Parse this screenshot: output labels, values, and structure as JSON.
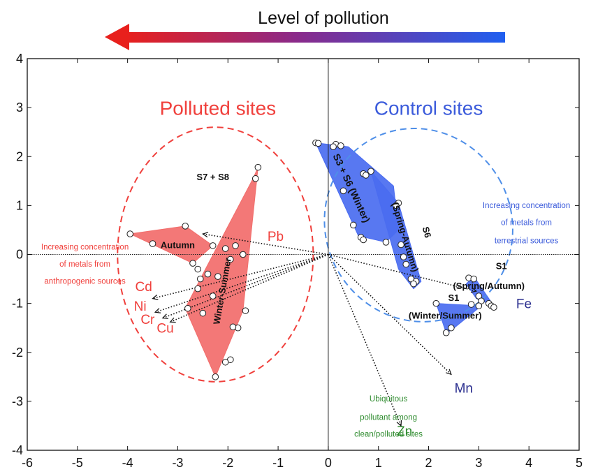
{
  "chart_data": {
    "type": "scatter",
    "title": "Level of pollution",
    "xlim": [
      -6,
      5
    ],
    "ylim": [
      -4,
      4
    ],
    "x_ticks": [
      -6,
      -5,
      -4,
      -3,
      -2,
      -1,
      0,
      1,
      2,
      3,
      4,
      5
    ],
    "y_ticks": [
      -4,
      -3,
      -2,
      -1,
      0,
      1,
      2,
      3,
      4
    ],
    "grid": false,
    "colors": {
      "polluted": "#f0403c",
      "polluted_fill": "#f26d6b",
      "control": "#3b5bdb",
      "control_fill": "#4a6cf0",
      "control_ellipse": "#4f8fe8",
      "green_text": "#2e8b2e",
      "navy_text": "#2b2f8f",
      "arrow_start": "#e8201c",
      "arrow_end": "#1f5ff0"
    },
    "group_labels": [
      {
        "name": "polluted",
        "text": "Polluted sites",
        "x": -2.2,
        "y": 2.85
      },
      {
        "name": "control",
        "text": "Control sites",
        "x": 2.0,
        "y": 2.85
      }
    ],
    "ellipses": [
      {
        "name": "polluted",
        "cx": -2.25,
        "cy": 0.0,
        "rx": 1.95,
        "ry": 2.6,
        "angle": 0
      },
      {
        "name": "control",
        "cx": 1.8,
        "cy": 0.6,
        "rx": 1.85,
        "ry": 2.0,
        "angle": -30
      }
    ],
    "hulls": [
      {
        "name": "polluted-autumn",
        "group": "polluted",
        "points": [
          [
            -3.95,
            0.42
          ],
          [
            -2.85,
            0.58
          ],
          [
            -2.3,
            0.18
          ],
          [
            -2.7,
            -0.18
          ]
        ]
      },
      {
        "name": "polluted-winter-summer",
        "group": "polluted",
        "points": [
          [
            -2.85,
            -1.1
          ],
          [
            -2.5,
            -0.4
          ],
          [
            -1.5,
            1.55
          ],
          [
            -1.4,
            1.78
          ],
          [
            -1.7,
            -1.15
          ],
          [
            -2.25,
            -2.5
          ]
        ]
      },
      {
        "name": "control-s3-s6-winter",
        "group": "control",
        "points": [
          [
            -0.25,
            2.28
          ],
          [
            0.4,
            2.2
          ],
          [
            1.3,
            1.4
          ],
          [
            1.4,
            0.5
          ],
          [
            1.15,
            0.25
          ],
          [
            0.6,
            0.38
          ]
        ]
      },
      {
        "name": "control-s6-spring-autumn",
        "group": "control",
        "points": [
          [
            0.85,
            1.7
          ],
          [
            1.4,
            1.05
          ],
          [
            1.85,
            -0.55
          ],
          [
            1.7,
            -0.7
          ],
          [
            1.4,
            -0.3
          ]
        ]
      },
      {
        "name": "control-s1-spring-autumn",
        "group": "control",
        "points": [
          [
            2.75,
            -0.6
          ],
          [
            2.9,
            -0.45
          ],
          [
            3.3,
            -1.05
          ],
          [
            2.95,
            -0.9
          ]
        ]
      },
      {
        "name": "control-s1-winter-summer",
        "group": "control",
        "points": [
          [
            2.15,
            -1.0
          ],
          [
            3.05,
            -1.05
          ],
          [
            2.45,
            -1.55
          ],
          [
            2.35,
            -1.6
          ]
        ]
      }
    ],
    "points": [
      [
        -3.95,
        0.42
      ],
      [
        -3.5,
        0.22
      ],
      [
        -2.85,
        0.58
      ],
      [
        -2.3,
        0.18
      ],
      [
        -2.7,
        -0.18
      ],
      [
        -2.6,
        -0.3
      ],
      [
        -2.55,
        -0.5
      ],
      [
        -2.6,
        -0.7
      ],
      [
        -2.4,
        -0.4
      ],
      [
        -2.3,
        -0.85
      ],
      [
        -2.5,
        -1.2
      ],
      [
        -2.8,
        -1.1
      ],
      [
        -1.95,
        -0.1
      ],
      [
        -1.85,
        0.18
      ],
      [
        -1.7,
        0.0
      ],
      [
        -2.05,
        0.12
      ],
      [
        -1.65,
        -1.15
      ],
      [
        -1.8,
        -1.5
      ],
      [
        -1.9,
        -1.48
      ],
      [
        -1.95,
        -2.15
      ],
      [
        -2.05,
        -2.2
      ],
      [
        -2.25,
        -2.5
      ],
      [
        -2.2,
        -0.45
      ],
      [
        -1.45,
        1.55
      ],
      [
        -1.4,
        1.78
      ],
      [
        -0.25,
        2.28
      ],
      [
        -0.2,
        2.27
      ],
      [
        0.15,
        2.25
      ],
      [
        0.25,
        2.22
      ],
      [
        0.1,
        2.2
      ],
      [
        0.7,
        1.65
      ],
      [
        0.85,
        1.7
      ],
      [
        0.75,
        1.62
      ],
      [
        0.3,
        1.3
      ],
      [
        0.5,
        0.6
      ],
      [
        0.65,
        0.35
      ],
      [
        0.7,
        0.3
      ],
      [
        1.15,
        0.25
      ],
      [
        1.4,
        1.05
      ],
      [
        1.35,
        1.0
      ],
      [
        1.45,
        0.2
      ],
      [
        1.5,
        -0.05
      ],
      [
        1.55,
        -0.2
      ],
      [
        1.65,
        -0.5
      ],
      [
        1.75,
        -0.55
      ],
      [
        1.7,
        -0.6
      ],
      [
        2.8,
        -0.48
      ],
      [
        2.9,
        -0.5
      ],
      [
        3.0,
        -0.85
      ],
      [
        3.05,
        -0.95
      ],
      [
        3.2,
        -1.0
      ],
      [
        3.25,
        -1.05
      ],
      [
        3.3,
        -1.08
      ],
      [
        2.15,
        -1.0
      ],
      [
        2.45,
        -1.5
      ],
      [
        2.35,
        -1.6
      ],
      [
        2.85,
        -1.02
      ],
      [
        3.0,
        -1.05
      ]
    ],
    "vectors": [
      {
        "name": "Pb",
        "label": "Pb",
        "x": -2.5,
        "y": 0.42,
        "label_x": -1.05,
        "label_y": 0.28,
        "label_color": "polluted"
      },
      {
        "name": "Cd",
        "label": "Cd",
        "x": -3.5,
        "y": -0.9,
        "label_x": -3.68,
        "label_y": -0.75,
        "label_color": "polluted"
      },
      {
        "name": "Ni",
        "label": "Ni",
        "x": -3.45,
        "y": -1.18,
        "label_x": -3.75,
        "label_y": -1.15,
        "label_color": "polluted"
      },
      {
        "name": "Cr",
        "label": "Cr",
        "x": -3.3,
        "y": -1.3,
        "label_x": -3.6,
        "label_y": -1.42,
        "label_color": "polluted"
      },
      {
        "name": "Cu",
        "label": "Cu",
        "x": -3.15,
        "y": -1.38,
        "label_x": -3.25,
        "label_y": -1.6,
        "label_color": "polluted"
      },
      {
        "name": "Fe",
        "label": "Fe",
        "x": 2.95,
        "y": -0.75,
        "label_x": 3.9,
        "label_y": -1.1,
        "label_color": "navy"
      },
      {
        "name": "Mn",
        "label": "Mn",
        "x": 2.45,
        "y": -2.45,
        "label_x": 2.7,
        "label_y": -2.82,
        "label_color": "navy"
      },
      {
        "name": "Zn",
        "label": "Zn",
        "x": 1.45,
        "y": -3.5,
        "label_x": 1.52,
        "label_y": -3.7,
        "label_color": "green"
      }
    ],
    "annotations": [
      {
        "name": "s7-s8",
        "text": "S7 + S8",
        "x": -2.3,
        "y": 1.57,
        "rotate": 0,
        "size": 13,
        "weight": "bold",
        "color": "#111111"
      },
      {
        "name": "autumn",
        "text": "Autumn",
        "x": -3.0,
        "y": 0.18,
        "rotate": 0,
        "size": 13,
        "weight": "bold",
        "color": "#111111"
      },
      {
        "name": "winter-summer",
        "text": "Winter-Summer",
        "x": -2.1,
        "y": -0.75,
        "rotate": -80,
        "size": 13,
        "weight": "bold",
        "color": "#111111"
      },
      {
        "name": "s3-s6-winter",
        "text": "S3 + S6 (Winter)",
        "x": 0.45,
        "y": 1.35,
        "rotate": 65,
        "size": 14,
        "weight": "bold",
        "color": "#111111"
      },
      {
        "name": "spring-autumn-s6",
        "text": "(Spring-Autumn)",
        "x": 1.52,
        "y": 0.35,
        "rotate": 73,
        "size": 13,
        "weight": "bold",
        "color": "#111111"
      },
      {
        "name": "s6",
        "text": "S6",
        "x": 1.95,
        "y": 0.45,
        "rotate": 75,
        "size": 13,
        "weight": "bold",
        "color": "#111111"
      },
      {
        "name": "s1-spring-label",
        "text": "S1",
        "x": 3.45,
        "y": -0.25,
        "rotate": 0,
        "size": 13,
        "weight": "bold",
        "color": "#111111"
      },
      {
        "name": "spring-autumn-s1",
        "text": "(Spring/Autumn)",
        "x": 3.2,
        "y": -0.66,
        "rotate": 0,
        "size": 13,
        "weight": "bold",
        "color": "#111111"
      },
      {
        "name": "s1-winter-label",
        "text": "S1",
        "x": 2.5,
        "y": -0.9,
        "rotate": 0,
        "size": 13,
        "weight": "bold",
        "color": "#111111"
      },
      {
        "name": "winter-summer-s1",
        "text": "(Winter/Summer)",
        "x": 2.33,
        "y": -1.26,
        "rotate": 0,
        "size": 13,
        "weight": "bold",
        "color": "#111111"
      }
    ],
    "notes": [
      {
        "name": "anthropogenic-note",
        "color": "polluted",
        "x": -4.85,
        "size": 11.5,
        "lines": [
          {
            "text": "Increasing concentration",
            "y": 0.1
          },
          {
            "text": "of metals from",
            "y": -0.25
          },
          {
            "text": "anthropogenic sources",
            "y": -0.6
          }
        ]
      },
      {
        "name": "terrestrial-note",
        "color": "control",
        "x": 3.95,
        "size": 11.5,
        "lines": [
          {
            "text": "Increasing concentration",
            "y": 0.95
          },
          {
            "text": "of metals from",
            "y": 0.6
          },
          {
            "text": "terrestrial sources",
            "y": 0.23
          }
        ]
      },
      {
        "name": "ubiquitous-note",
        "color": "green",
        "x": 1.2,
        "size": 11.5,
        "lines": [
          {
            "text": "Ubiquitous",
            "y": -3.0
          },
          {
            "text": "pollutant among",
            "y": -3.38
          },
          {
            "text": "clean/polluted sites",
            "y": -3.72
          }
        ]
      }
    ]
  }
}
